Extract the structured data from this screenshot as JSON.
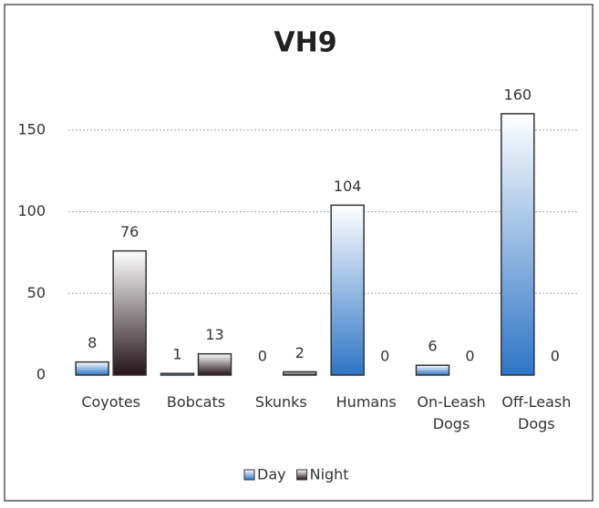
{
  "chart_data": {
    "type": "bar",
    "title": "VH9",
    "categories": [
      "Coyotes",
      "Bobcats",
      "Skunks",
      "Humans",
      "On-Leash Dogs",
      "Off-Leash Dogs"
    ],
    "series": [
      {
        "name": "Day",
        "color": "#2e75c6",
        "values": [
          8,
          1,
          0,
          104,
          6,
          160
        ]
      },
      {
        "name": "Night",
        "color": "#231419",
        "values": [
          76,
          13,
          2,
          0,
          0,
          0
        ]
      }
    ],
    "ylim": [
      0,
      175
    ],
    "yticks": [
      0,
      50,
      100,
      150
    ],
    "grid": true,
    "legend": "bottom"
  }
}
